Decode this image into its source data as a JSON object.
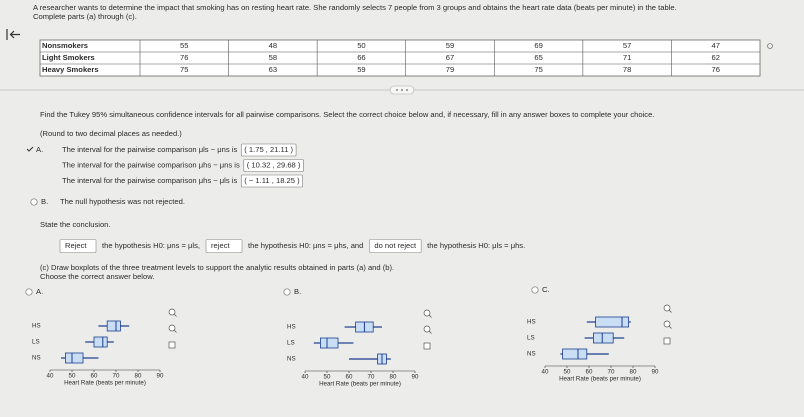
{
  "header": {
    "intro": "A researcher wants to determine the impact that smoking has on resting heart rate. She randomly selects 7 people from 3 groups and obtains the heart rate data (beats per minute) in the table.",
    "instruction": "Complete parts (a) through (c)."
  },
  "table": {
    "rows": [
      [
        "Nonsmokers",
        55,
        48,
        50,
        59,
        69,
        57,
        47
      ],
      [
        "Light Smokers",
        76,
        58,
        66,
        67,
        65,
        71,
        62
      ],
      [
        "Heavy Smokers",
        75,
        63,
        59,
        79,
        75,
        78,
        76
      ]
    ]
  },
  "part_b": {
    "prompt": "Find the Tukey 95% simultaneous confidence intervals for all pairwise comparisons. Select the correct choice below and, if necessary, fill in any answer boxes to complete your choice.",
    "round_note": "(Round to two decimal places as needed.)",
    "options": [
      {
        "letter": "A.",
        "lines": [
          {
            "text": "The interval for the pairwise comparison μls − μns is",
            "interval": "( 1.75 , 21.11 )"
          },
          {
            "text": "The interval for the pairwise comparison μhs − μns is",
            "interval": "( 10.32 , 29.68 )"
          },
          {
            "text": "The interval for the pairwise comparison μhs − μls is",
            "interval": "( − 1.11 , 18.25 )"
          }
        ]
      },
      {
        "letter": "B.",
        "text": "The null hypothesis was not rejected."
      }
    ]
  },
  "conclusion": {
    "prompt": "State the conclusion.",
    "parts": [
      {
        "answer": "Reject",
        "text": "the hypothesis H0: μns = μls,"
      },
      {
        "answer": "reject",
        "text": "the hypothesis H0: μns = μhs, and"
      },
      {
        "answer": "do not reject",
        "text": "the hypothesis H0: μls = μhs."
      }
    ]
  },
  "part_c": {
    "prompt": "(c)   Draw boxplots of the three treatment levels to support the analytic results obtained in parts (a) and (b).",
    "choose": "Choose the correct answer below.",
    "axis_ticks": [
      40,
      50,
      60,
      70,
      80,
      90
    ],
    "axis_label": "Heart Rate (beats per minute)",
    "options": [
      {
        "letter": "A.",
        "plots": [
          {
            "group": "HS",
            "min": 62,
            "q1": 66,
            "median": 70,
            "q3": 72,
            "max": 76
          },
          {
            "group": "LS",
            "min": 56,
            "q1": 60,
            "median": 64,
            "q3": 66,
            "max": 69
          },
          {
            "group": "NS",
            "min": 45,
            "q1": 47,
            "median": 50,
            "q3": 55,
            "max": 62
          }
        ]
      },
      {
        "letter": "B.",
        "plots": [
          {
            "group": "HS",
            "min": 58,
            "q1": 63,
            "median": 67,
            "q3": 71,
            "max": 75
          },
          {
            "group": "LS",
            "min": 44,
            "q1": 47,
            "median": 50,
            "q3": 55,
            "max": 62
          },
          {
            "group": "NS",
            "min": 60,
            "q1": 73,
            "median": 75,
            "q3": 77,
            "max": 79
          }
        ]
      },
      {
        "letter": "C.",
        "plots": [
          {
            "group": "HS",
            "min": 59,
            "q1": 63,
            "median": 75,
            "q3": 78,
            "max": 79
          },
          {
            "group": "LS",
            "min": 58,
            "q1": 62,
            "median": 66,
            "q3": 71,
            "max": 76
          },
          {
            "group": "NS",
            "min": 47,
            "q1": 48,
            "median": 55,
            "q3": 59,
            "max": 69
          }
        ]
      }
    ]
  }
}
